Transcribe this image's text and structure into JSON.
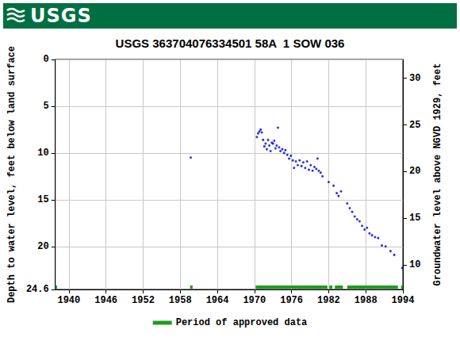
{
  "header": {
    "logo_text": "USGS"
  },
  "chart_data": {
    "type": "scatter",
    "title": "USGS 363704076334501 58A  1 SOW 036",
    "y_label": "Depth to water level, feet below land surface",
    "y2_label": "Groundwater level above NGVD 1929, feet",
    "x": [
      1959.7,
      1970.4,
      1970.6,
      1970.8,
      1971.0,
      1971.2,
      1971.4,
      1971.6,
      1971.8,
      1972.0,
      1972.2,
      1972.4,
      1972.6,
      1972.8,
      1973.0,
      1973.2,
      1973.4,
      1973.6,
      1973.8,
      1974.0,
      1974.2,
      1974.5,
      1974.8,
      1975.0,
      1975.3,
      1975.6,
      1975.9,
      1976.2,
      1976.4,
      1976.7,
      1977.0,
      1977.3,
      1977.6,
      1977.9,
      1978.2,
      1978.5,
      1978.8,
      1979.1,
      1979.4,
      1979.7,
      1980.0,
      1980.2,
      1980.4,
      1980.7,
      1981.0,
      1982.0,
      1982.8,
      1983.3,
      1983.6,
      1984.0,
      1985.0,
      1985.4,
      1985.8,
      1986.2,
      1986.6,
      1987.0,
      1987.4,
      1987.8,
      1988.2,
      1988.6,
      1989.0,
      1989.5,
      1990.0,
      1990.6,
      1991.2,
      1992.0,
      1992.6,
      1993.9
    ],
    "values": [
      10.5,
      8.3,
      7.9,
      7.7,
      7.5,
      7.8,
      8.6,
      9.3,
      9.0,
      9.6,
      8.6,
      9.2,
      9.8,
      8.9,
      9.0,
      8.7,
      9.5,
      9.2,
      7.3,
      9.4,
      9.8,
      9.6,
      10.0,
      9.7,
      10.2,
      10.6,
      10.3,
      10.8,
      11.6,
      10.9,
      11.3,
      10.8,
      11.4,
      11.0,
      11.6,
      10.9,
      11.8,
      11.3,
      11.9,
      11.5,
      11.7,
      10.6,
      11.9,
      12.1,
      12.5,
      13.1,
      13.5,
      14.3,
      14.6,
      14.1,
      15.4,
      15.9,
      16.3,
      16.8,
      17.1,
      17.3,
      17.8,
      18.2,
      18.0,
      18.6,
      18.8,
      19.0,
      19.1,
      19.9,
      20.0,
      20.5,
      20.9,
      22.3
    ],
    "color": "#0000cc",
    "marker": "circle",
    "xlim": [
      1937.8,
      1994
    ],
    "xticks": [
      1940,
      1946,
      1952,
      1958,
      1964,
      1970,
      1976,
      1982,
      1988,
      1994
    ],
    "ylim": [
      0,
      24.6
    ],
    "yticks": [
      0,
      5,
      10,
      15,
      20
    ],
    "y2lim": [
      7.4,
      32
    ],
    "y2ticks": [
      10,
      15,
      20,
      25,
      30
    ],
    "grid": true,
    "legend": "bottom",
    "approved_data": {
      "name": "Period of approved data",
      "color": "#1e9e1e",
      "periods": [
        [
          1937.8,
          1938.1
        ],
        [
          1959.6,
          1960.0
        ],
        [
          1970.2,
          1981.8
        ],
        [
          1982.1,
          1982.6
        ],
        [
          1983.0,
          1984.3
        ],
        [
          1985.0,
          1993.2
        ],
        [
          1993.7,
          1994.0
        ]
      ]
    }
  }
}
